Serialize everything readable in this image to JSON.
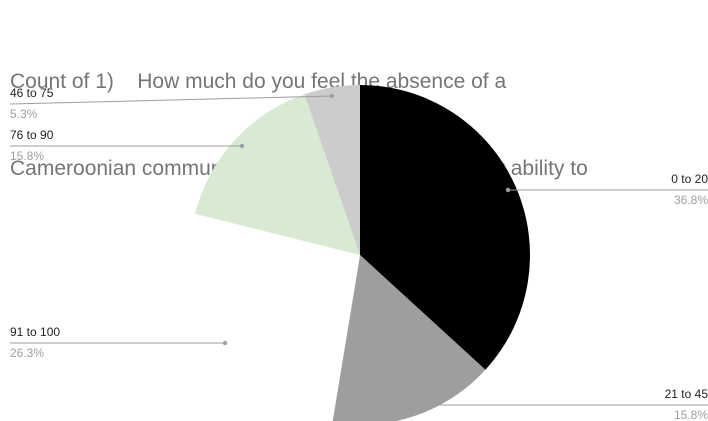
{
  "chart_data": {
    "type": "pie",
    "title_lines": [
      "Count of 1)    How much do you feel the absence of a",
      "Cameroonian community in Latvia has impacted your ability to"
    ],
    "slices": [
      {
        "label": "0  to 20",
        "percent_label": "36.8%",
        "value": 36.8,
        "color": "#000000"
      },
      {
        "label": "21 to 45",
        "percent_label": "15.8%",
        "value": 15.8,
        "color": "#9e9e9e"
      },
      {
        "label": "91 to 100",
        "percent_label": "26.3%",
        "value": 26.3,
        "color": "#ffffff"
      },
      {
        "label": "76 to 90",
        "percent_label": "15.8%",
        "value": 15.8,
        "color": "#d9ead3"
      },
      {
        "label": "46 to 75",
        "percent_label": "5.3%",
        "value": 5.3,
        "color": "#cccccc"
      }
    ],
    "legend": "none",
    "start_angle": "12 o'clock, clockwise"
  }
}
